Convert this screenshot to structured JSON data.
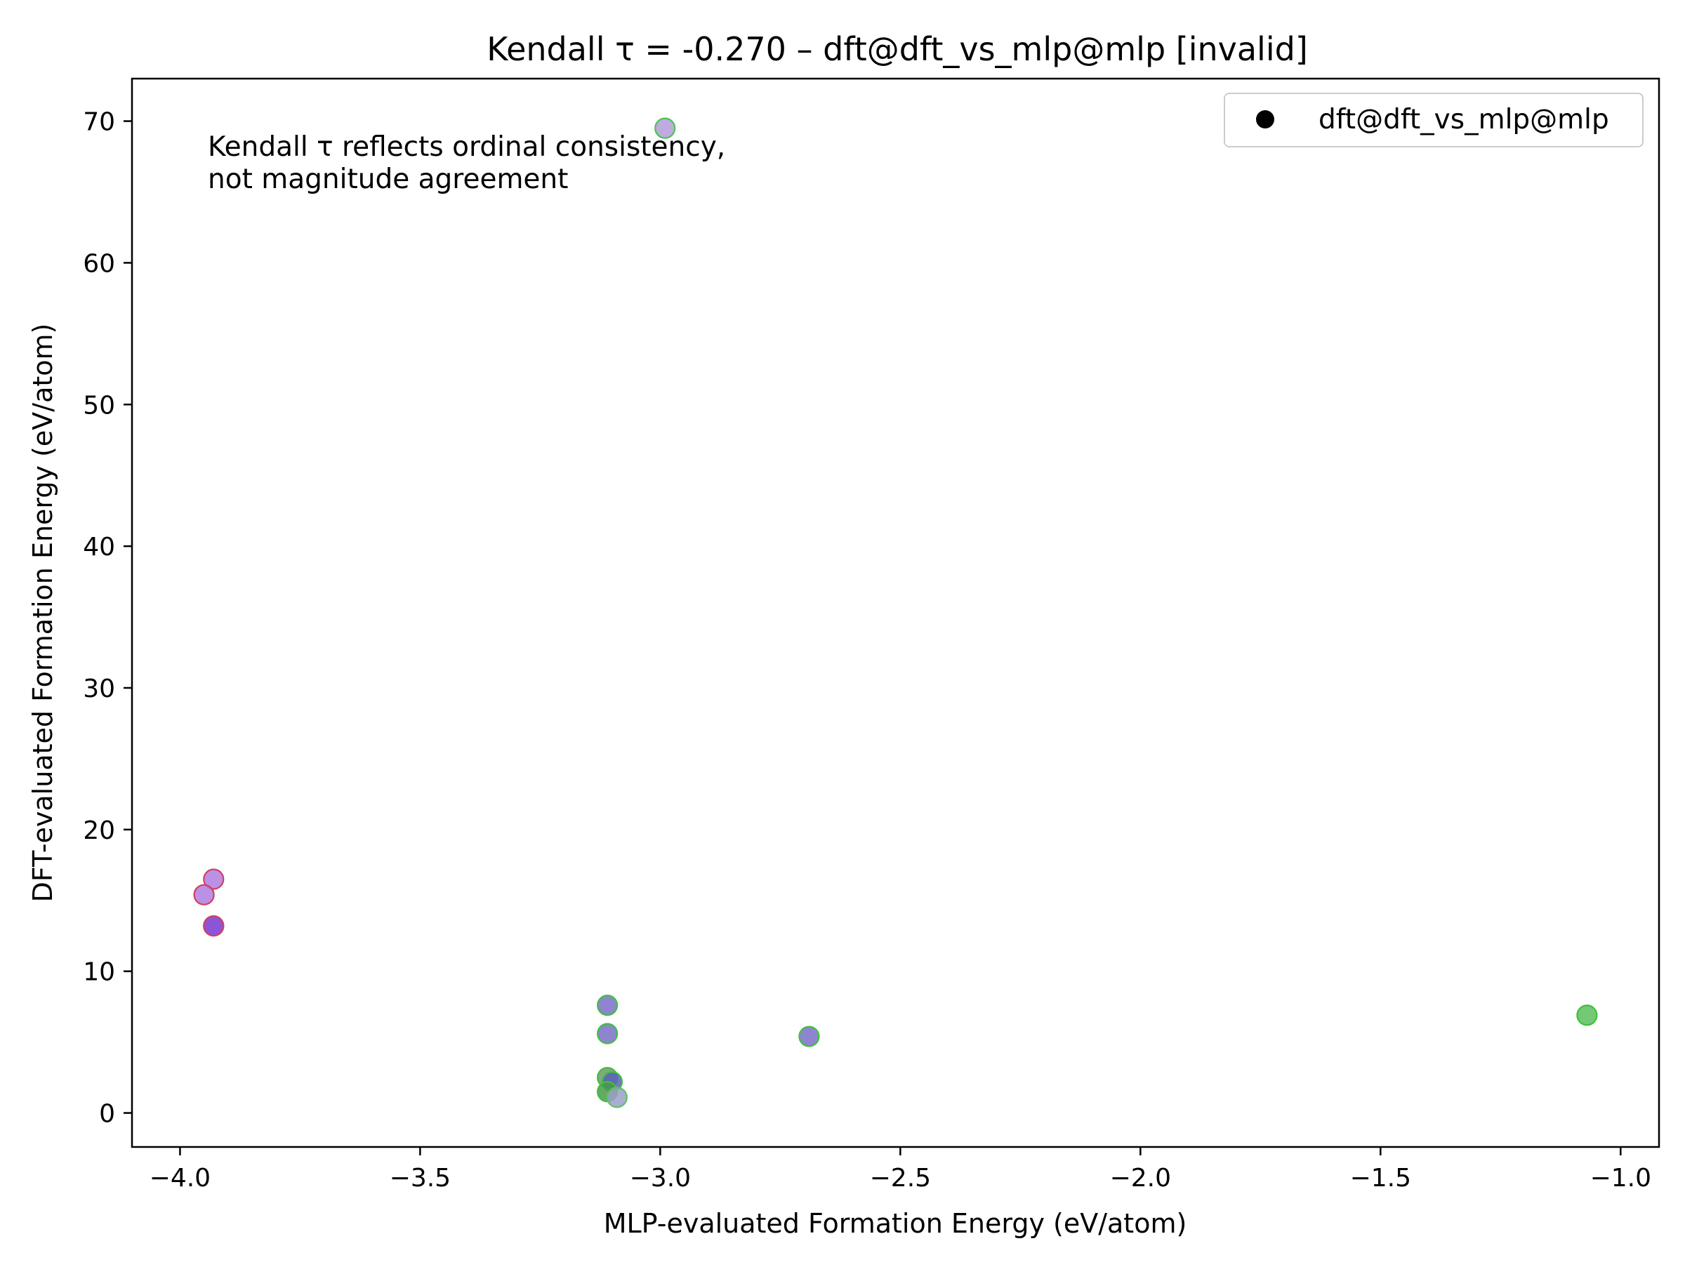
{
  "chart_data": {
    "type": "scatter",
    "title": "Kendall τ = -0.270 – dft@dft_vs_mlp@mlp [invalid]",
    "xlabel": "MLP-evaluated Formation Energy (eV/atom)",
    "ylabel": "DFT-evaluated Formation Energy (eV/atom)",
    "xlim": [
      -4.1,
      -0.92
    ],
    "ylim": [
      -2.4,
      73.0
    ],
    "xticks": [
      -4.0,
      -3.5,
      -3.0,
      -2.5,
      -2.0,
      -1.5,
      -1.0
    ],
    "xtick_labels": [
      "−4.0",
      "−3.5",
      "−3.0",
      "−2.5",
      "−2.0",
      "−1.5",
      "−1.0"
    ],
    "yticks": [
      0,
      10,
      20,
      30,
      40,
      50,
      60,
      70
    ],
    "ytick_labels": [
      "0",
      "10",
      "20",
      "30",
      "40",
      "50",
      "60",
      "70"
    ],
    "grid": false,
    "legend": {
      "position": "top-right",
      "entries": [
        "dft@dft_vs_mlp@mlp"
      ],
      "marker_color": "#000000"
    },
    "annotation": [
      "Kendall τ reflects ordinal consistency,",
      "not magnitude agreement"
    ],
    "series": [
      {
        "name": "dft@dft_vs_mlp@mlp",
        "points": [
          {
            "x": -2.99,
            "y": 69.5,
            "fill": "#b39ddb",
            "edge": "#4cc44c"
          },
          {
            "x": -3.93,
            "y": 16.5,
            "fill": "#b07ee0",
            "edge": "#d04060"
          },
          {
            "x": -3.95,
            "y": 15.4,
            "fill": "#b07ee0",
            "edge": "#d04060"
          },
          {
            "x": -3.93,
            "y": 13.2,
            "fill": "#8a50d8",
            "edge": "#d04060"
          },
          {
            "x": -3.93,
            "y": 13.2,
            "fill": "#8a50d8",
            "edge": "#d04060"
          },
          {
            "x": -3.11,
            "y": 7.6,
            "fill": "#7a70c8",
            "edge": "#40c040"
          },
          {
            "x": -3.11,
            "y": 5.6,
            "fill": "#7a70c8",
            "edge": "#40c040"
          },
          {
            "x": -2.69,
            "y": 5.4,
            "fill": "#7a70c8",
            "edge": "#40c040"
          },
          {
            "x": -1.07,
            "y": 6.9,
            "fill": "#5cbf5c",
            "edge": "#40c040"
          },
          {
            "x": -3.11,
            "y": 2.5,
            "fill": "#6a9a6a",
            "edge": "#40c040"
          },
          {
            "x": -3.1,
            "y": 2.2,
            "fill": "#5a60b8",
            "edge": "#40c040"
          },
          {
            "x": -3.11,
            "y": 1.5,
            "fill": "#4a9a4a",
            "edge": "#40c040"
          },
          {
            "x": -3.09,
            "y": 1.1,
            "fill": "#9aa0c8",
            "edge": "#60c060"
          }
        ]
      }
    ]
  }
}
